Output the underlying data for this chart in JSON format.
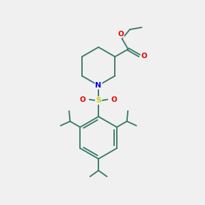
{
  "background_color": "#f0f0f0",
  "bond_color": "#3a7a6a",
  "N_color": "#0000ee",
  "S_color": "#cccc00",
  "O_color": "#ee0000",
  "line_width": 1.4,
  "fig_size": [
    3.0,
    3.0
  ],
  "dpi": 100,
  "xlim": [
    0,
    10
  ],
  "ylim": [
    0,
    10
  ]
}
